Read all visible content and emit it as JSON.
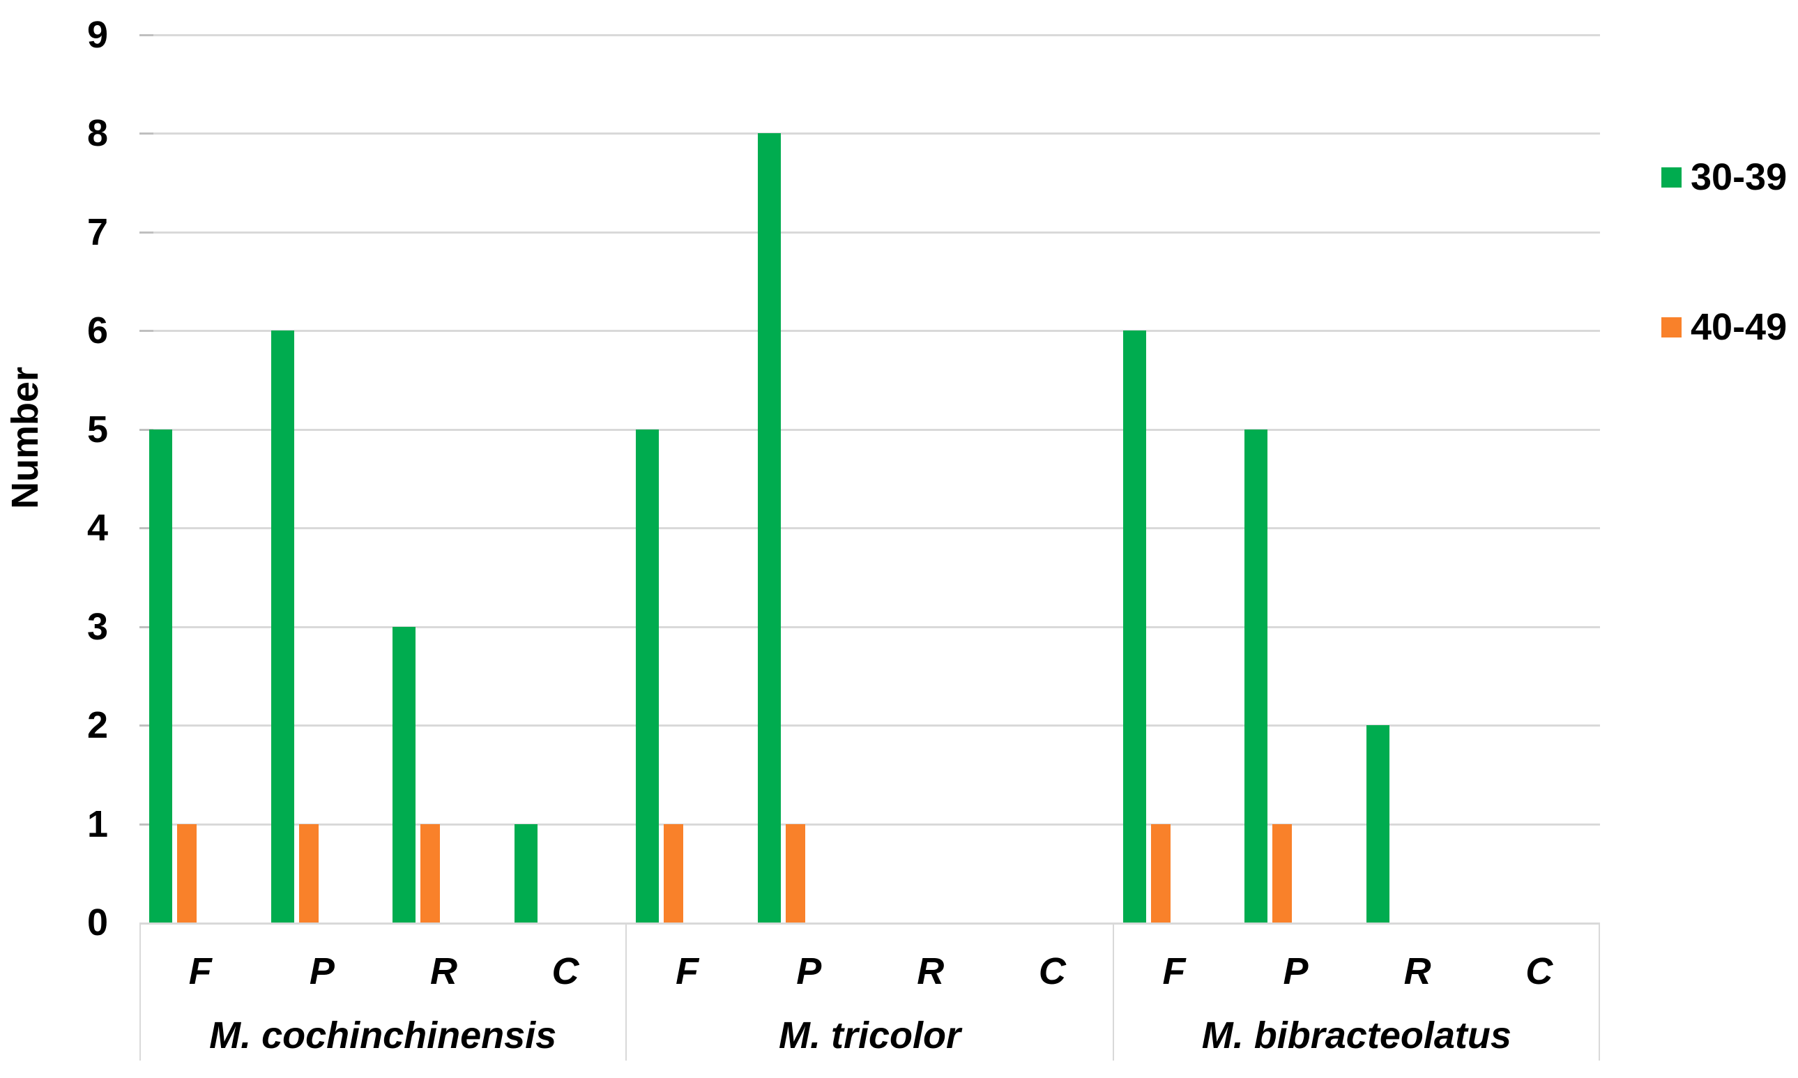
{
  "chart_data": {
    "type": "bar",
    "title": "",
    "xlabel": "",
    "ylabel": "Number",
    "ylim": [
      0,
      9
    ],
    "yticks": [
      0,
      1,
      2,
      3,
      4,
      5,
      6,
      7,
      8,
      9
    ],
    "grid": true,
    "legend_position": "right",
    "legend": [
      {
        "name": "30-39",
        "color": "#00ac4f"
      },
      {
        "name": "40-49",
        "color": "#f9812a"
      }
    ],
    "groups": [
      {
        "name": "M. cochinchinensis",
        "categories": [
          "F",
          "P",
          "R",
          "C"
        ],
        "series": [
          {
            "name": "30-39",
            "values": [
              5,
              6,
              3,
              1
            ]
          },
          {
            "name": "40-49",
            "values": [
              1,
              1,
              1,
              0
            ]
          }
        ]
      },
      {
        "name": "M. tricolor",
        "categories": [
          "F",
          "P",
          "R",
          "C"
        ],
        "series": [
          {
            "name": "30-39",
            "values": [
              5,
              8,
              0,
              0
            ]
          },
          {
            "name": "40-49",
            "values": [
              1,
              1,
              0,
              0
            ]
          }
        ]
      },
      {
        "name": "M. bibracteolatus",
        "categories": [
          "F",
          "P",
          "R",
          "C"
        ],
        "series": [
          {
            "name": "30-39",
            "values": [
              6,
              5,
              2,
              0
            ]
          },
          {
            "name": "40-49",
            "values": [
              1,
              1,
              0,
              0
            ]
          }
        ]
      }
    ]
  }
}
